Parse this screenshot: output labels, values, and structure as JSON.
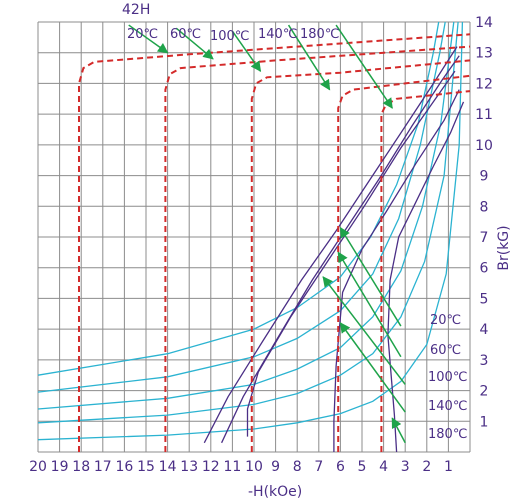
{
  "chart_data": {
    "type": "line",
    "title": "42H",
    "xlabel": "-H(kOe)",
    "ylabel": "Br(kG)",
    "x_axis": {
      "min": 0,
      "max": 20,
      "reversed": true,
      "ticks": [
        20,
        19,
        18,
        17,
        16,
        15,
        14,
        13,
        12,
        11,
        10,
        9,
        8,
        7,
        6,
        5,
        4,
        3,
        2,
        1
      ]
    },
    "y_axis": {
      "min": 0,
      "max": 14,
      "ticks": [
        1,
        2,
        3,
        4,
        5,
        6,
        7,
        8,
        9,
        10,
        11,
        12,
        13,
        14
      ]
    },
    "grid": true,
    "colors": {
      "grid": "#8c8c8c",
      "tick_text": "#4b2f86",
      "bh": "#d42a2a",
      "bhc": "#4b2f86",
      "permeance": "#2bb3d1",
      "arrow": "#1fa34a"
    },
    "top_labels": [
      "20℃",
      "60℃",
      "100℃",
      "140℃",
      "180℃"
    ],
    "right_labels": [
      "20℃",
      "60℃",
      "100℃",
      "140℃",
      "180℃"
    ],
    "series_bh": [
      {
        "name": "20℃",
        "values": [
          [
            18.1,
            0
          ],
          [
            18.1,
            12
          ],
          [
            17.9,
            12.5
          ],
          [
            17.4,
            12.7
          ],
          [
            13,
            12.95
          ],
          [
            8,
            13.2
          ],
          [
            3,
            13.45
          ],
          [
            0,
            13.6
          ]
        ]
      },
      {
        "name": "60℃",
        "values": [
          [
            14.1,
            0
          ],
          [
            14.1,
            11.8
          ],
          [
            13.9,
            12.3
          ],
          [
            13.4,
            12.5
          ],
          [
            9,
            12.75
          ],
          [
            5,
            12.95
          ],
          [
            0,
            13.2
          ]
        ]
      },
      {
        "name": "100℃",
        "values": [
          [
            10.1,
            0
          ],
          [
            10.1,
            11.5
          ],
          [
            9.9,
            12.0
          ],
          [
            9.4,
            12.2
          ],
          [
            6,
            12.35
          ],
          [
            3,
            12.55
          ],
          [
            0,
            12.75
          ]
        ]
      },
      {
        "name": "140℃",
        "values": [
          [
            6.1,
            0
          ],
          [
            6.1,
            11.2
          ],
          [
            5.9,
            11.6
          ],
          [
            5.4,
            11.8
          ],
          [
            3,
            12.0
          ],
          [
            0,
            12.25
          ]
        ]
      },
      {
        "name": "180℃",
        "values": [
          [
            4.1,
            0
          ],
          [
            4.1,
            11.0
          ],
          [
            3.9,
            11.3
          ],
          [
            3.4,
            11.5
          ],
          [
            2,
            11.6
          ],
          [
            0,
            11.75
          ]
        ]
      }
    ],
    "series_bhc": [
      {
        "name": "20℃",
        "values": [
          [
            12.3,
            0.3
          ],
          [
            11.2,
            1.8
          ],
          [
            9.6,
            3.6
          ],
          [
            7.8,
            5.6
          ],
          [
            6.2,
            7.2
          ],
          [
            4.6,
            8.9
          ],
          [
            3,
            10.6
          ],
          [
            1.6,
            12.1
          ],
          [
            0.6,
            13.2
          ]
        ]
      },
      {
        "name": "60℃",
        "values": [
          [
            11.5,
            0.3
          ],
          [
            10.5,
            1.8
          ],
          [
            9,
            3.6
          ],
          [
            7.3,
            5.6
          ],
          [
            5.8,
            7.2
          ],
          [
            4.2,
            8.9
          ],
          [
            2.7,
            10.6
          ],
          [
            1.3,
            12.1
          ],
          [
            0.5,
            12.9
          ]
        ]
      },
      {
        "name": "100℃",
        "values": [
          [
            10.3,
            0.5
          ],
          [
            10.3,
            1.4
          ],
          [
            9.8,
            2.6
          ],
          [
            8.3,
            4.4
          ],
          [
            6.6,
            6.2
          ],
          [
            4.9,
            8.0
          ],
          [
            3.2,
            9.9
          ],
          [
            1.7,
            11.4
          ],
          [
            0.7,
            12.4
          ]
        ]
      },
      {
        "name": "140℃",
        "values": [
          [
            6.3,
            0
          ],
          [
            6.3,
            1.0
          ],
          [
            6.2,
            2.8
          ],
          [
            5.9,
            5.2
          ],
          [
            5.0,
            6.6
          ],
          [
            3.9,
            7.8
          ],
          [
            2.5,
            9.4
          ],
          [
            1.2,
            10.8
          ],
          [
            0.5,
            11.8
          ]
        ]
      },
      {
        "name": "180℃",
        "values": [
          [
            3.4,
            0
          ],
          [
            3.5,
            1.2
          ],
          [
            3.8,
            3.8
          ],
          [
            3.7,
            5.6
          ],
          [
            3.3,
            7.0
          ],
          [
            2.6,
            8.0
          ],
          [
            1.7,
            9.3
          ],
          [
            0.9,
            10.4
          ],
          [
            0.3,
            11.4
          ]
        ]
      }
    ],
    "series_permeance": [
      {
        "values": [
          [
            20,
            2.5
          ],
          [
            14,
            3.2
          ],
          [
            10,
            4.0
          ],
          [
            8,
            4.7
          ],
          [
            6,
            5.7
          ],
          [
            4.6,
            7.0
          ],
          [
            3.4,
            8.7
          ],
          [
            2.4,
            10.7
          ],
          [
            1.7,
            13
          ],
          [
            1.45,
            14
          ]
        ]
      },
      {
        "values": [
          [
            20,
            1.95
          ],
          [
            14,
            2.45
          ],
          [
            10,
            3.1
          ],
          [
            8,
            3.7
          ],
          [
            6,
            4.6
          ],
          [
            4.5,
            5.8
          ],
          [
            3.3,
            7.6
          ],
          [
            2.3,
            10.0
          ],
          [
            1.4,
            13
          ],
          [
            1.15,
            14
          ]
        ]
      },
      {
        "values": [
          [
            20,
            1.4
          ],
          [
            14,
            1.75
          ],
          [
            10,
            2.2
          ],
          [
            8,
            2.7
          ],
          [
            6,
            3.4
          ],
          [
            4.5,
            4.4
          ],
          [
            3.2,
            5.9
          ],
          [
            2.2,
            8.0
          ],
          [
            1.35,
            10.7
          ],
          [
            0.75,
            14
          ]
        ]
      },
      {
        "values": [
          [
            20,
            0.95
          ],
          [
            14,
            1.2
          ],
          [
            10,
            1.55
          ],
          [
            8,
            1.9
          ],
          [
            6,
            2.5
          ],
          [
            4.5,
            3.2
          ],
          [
            3.2,
            4.4
          ],
          [
            2.1,
            6.2
          ],
          [
            1.2,
            9.0
          ],
          [
            0.55,
            14
          ]
        ]
      },
      {
        "values": [
          [
            20,
            0.4
          ],
          [
            14,
            0.55
          ],
          [
            10,
            0.75
          ],
          [
            8,
            0.95
          ],
          [
            6,
            1.25
          ],
          [
            4.5,
            1.65
          ],
          [
            3.2,
            2.3
          ],
          [
            2.0,
            3.5
          ],
          [
            1.1,
            5.8
          ],
          [
            0.5,
            10
          ],
          [
            0.35,
            14
          ]
        ]
      }
    ],
    "arrows": [
      {
        "from": [
          15.8,
          13.9
        ],
        "to": [
          14.0,
          13.0
        ]
      },
      {
        "from": [
          13.6,
          13.8
        ],
        "to": [
          11.9,
          12.8
        ]
      },
      {
        "from": [
          11.0,
          13.7
        ],
        "to": [
          9.7,
          12.4
        ]
      },
      {
        "from": [
          8.4,
          13.9
        ],
        "to": [
          6.5,
          11.8
        ]
      },
      {
        "from": [
          6.2,
          13.9
        ],
        "to": [
          3.6,
          11.2
        ]
      },
      {
        "from": [
          3.2,
          4.1
        ],
        "to": [
          6.0,
          7.3
        ]
      },
      {
        "from": [
          3.2,
          3.1
        ],
        "to": [
          6.1,
          6.5
        ]
      },
      {
        "from": [
          3.0,
          2.2
        ],
        "to": [
          6.8,
          5.7
        ]
      },
      {
        "from": [
          3.0,
          1.3
        ],
        "to": [
          6.0,
          4.2
        ]
      },
      {
        "from": [
          3.0,
          0.3
        ],
        "to": [
          3.6,
          1.1
        ]
      }
    ]
  }
}
